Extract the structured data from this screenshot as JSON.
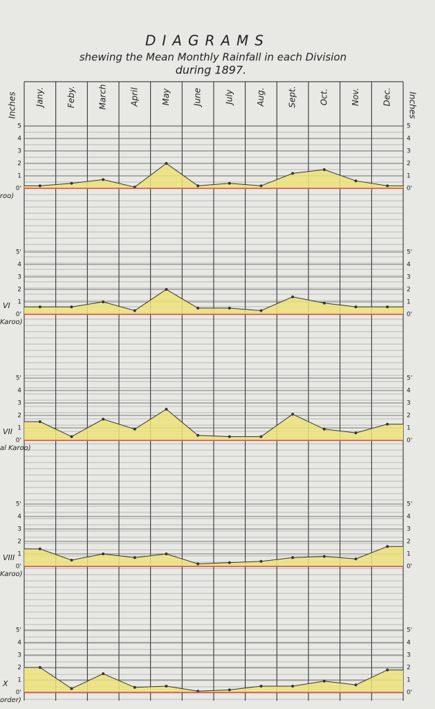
{
  "header": {
    "title": "DIAGRAMS",
    "subtitle": "shewing the Mean Monthly Rainfall in each Division",
    "date": "during 1897."
  },
  "categories": [
    "Jany.",
    "Feby.",
    "March",
    "April",
    "May",
    "June",
    "July",
    "Aug.",
    "Sept.",
    "Oct.",
    "Nov.",
    "Dec."
  ],
  "axis_label": "Inches",
  "chart_data": [
    {
      "type": "area",
      "sublabel": "roo)",
      "color": "#ece27a",
      "line_color": "#333333",
      "zero_color": "#d9534f",
      "values": [
        0.2,
        0.4,
        0.7,
        0.1,
        2.0,
        0.2,
        0.4,
        0.2,
        1.2,
        1.5,
        0.6,
        0.2
      ],
      "ylim": [
        0,
        5
      ],
      "yticks": [
        {
          "value": 0,
          "label": "0'"
        },
        1,
        2,
        3,
        4,
        5
      ]
    },
    {
      "type": "area",
      "label": "VI",
      "sublabel": "Karoo)",
      "color": "#ece27a",
      "line_color": "#333333",
      "zero_color": "#d9534f",
      "values": [
        0.6,
        0.6,
        1.0,
        0.3,
        2.0,
        0.5,
        0.5,
        0.3,
        1.4,
        0.9,
        0.6,
        0.6
      ],
      "ylim": [
        0,
        5
      ],
      "yticks": [
        {
          "value": 0,
          "label": "0'"
        },
        1,
        2,
        3,
        4,
        {
          "value": 5,
          "label": "5'"
        }
      ]
    },
    {
      "type": "area",
      "label": "VII",
      "sublabel": "al Karoo)",
      "color": "#ece27a",
      "line_color": "#333333",
      "zero_color": "#d9534f",
      "values": [
        1.5,
        0.3,
        1.7,
        0.9,
        2.5,
        0.4,
        0.3,
        0.3,
        2.1,
        0.9,
        0.6,
        1.3
      ],
      "ylim": [
        0,
        5
      ],
      "yticks": [
        {
          "value": 0,
          "label": "0'"
        },
        1,
        2,
        3,
        4,
        {
          "value": 5,
          "label": "5'"
        }
      ]
    },
    {
      "type": "area",
      "label": "VIII",
      "sublabel": "Karoo)",
      "color": "#ece27a",
      "line_color": "#333333",
      "zero_color": "#d9534f",
      "values": [
        1.4,
        0.5,
        1.0,
        0.7,
        1.0,
        0.2,
        0.3,
        0.4,
        0.7,
        0.8,
        0.6,
        1.6
      ],
      "ylim": [
        0,
        5
      ],
      "yticks": [
        {
          "value": 0,
          "label": "0'"
        },
        1,
        2,
        3,
        4,
        {
          "value": 5,
          "label": "5'"
        }
      ]
    },
    {
      "type": "area",
      "label": "X",
      "sublabel": "order)",
      "color": "#ece27a",
      "line_color": "#333333",
      "zero_color": "#d9534f",
      "values": [
        2.0,
        0.3,
        1.5,
        0.4,
        0.5,
        0.1,
        0.2,
        0.5,
        0.5,
        0.9,
        0.6,
        1.8
      ],
      "ylim": [
        0,
        5
      ],
      "yticks": [
        {
          "value": 0,
          "label": "0'"
        },
        1,
        2,
        3,
        4,
        {
          "value": 5,
          "label": "5'"
        }
      ]
    }
  ]
}
